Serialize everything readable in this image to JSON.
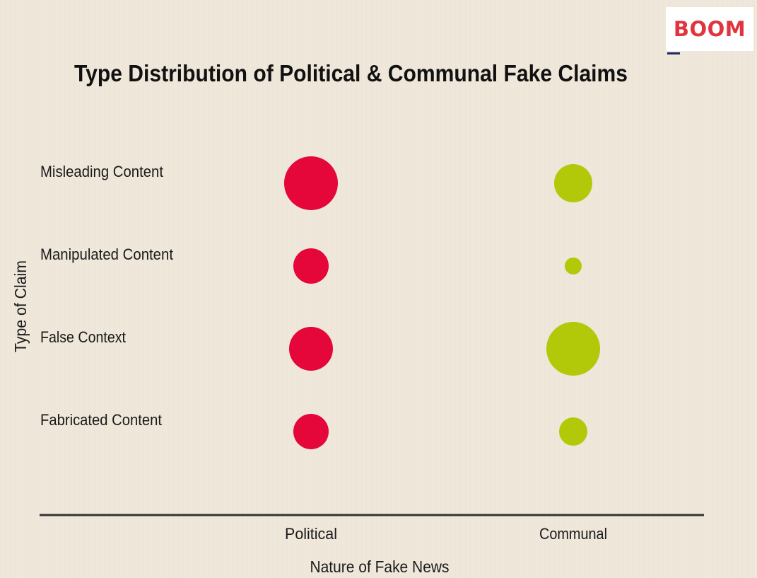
{
  "brand": {
    "logo_text": "BOOM"
  },
  "colors": {
    "political": "#e5063a",
    "communal": "#b2c90a",
    "axis": "#333333"
  },
  "chart_data": {
    "type": "scatter",
    "title": "Type Distribution of Political & Communal Fake Claims",
    "xlabel": "Nature of Fake News",
    "ylabel": "Type of Claim",
    "x_categories": [
      "Political",
      "Communal"
    ],
    "y_categories": [
      "Misleading Content",
      "Manipulated Content",
      "False Context",
      "Fabricated Content"
    ],
    "grid": false,
    "points": [
      {
        "x": "Political",
        "y": "Misleading Content",
        "size": 38
      },
      {
        "x": "Political",
        "y": "Manipulated Content",
        "size": 25
      },
      {
        "x": "Political",
        "y": "False Context",
        "size": 31
      },
      {
        "x": "Political",
        "y": "Fabricated Content",
        "size": 25
      },
      {
        "x": "Communal",
        "y": "Misleading Content",
        "size": 27
      },
      {
        "x": "Communal",
        "y": "Manipulated Content",
        "size": 12
      },
      {
        "x": "Communal",
        "y": "False Context",
        "size": 38
      },
      {
        "x": "Communal",
        "y": "Fabricated Content",
        "size": 20
      }
    ]
  }
}
